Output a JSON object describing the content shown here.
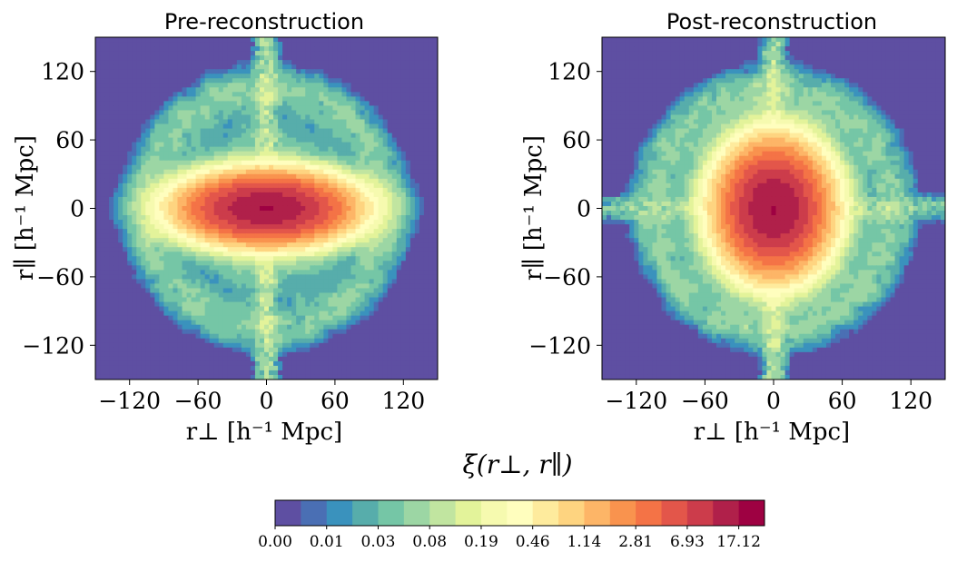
{
  "chart_data": [
    {
      "type": "heatmap",
      "panel": "pre",
      "title": "Pre-reconstruction",
      "xlabel": "r⊥ [h⁻¹ Mpc]",
      "ylabel": "r∥ [h⁻¹ Mpc]",
      "xlim": [
        -150,
        150
      ],
      "ylim": [
        -150,
        150
      ],
      "xticks": [
        -120,
        -60,
        0,
        60,
        120
      ],
      "yticks": [
        -120,
        -60,
        0,
        60,
        120
      ],
      "xtick_labels": [
        "−120",
        "−60",
        "0",
        "60",
        "120"
      ],
      "ytick_labels": [
        "−120",
        "−60",
        "0",
        "60",
        "120"
      ],
      "core": {
        "sigma_perp": 34,
        "sigma_par": 14,
        "peak": 17.12
      },
      "bao_ring_radius": 105,
      "los_filament": true,
      "transverse_filament": false
    },
    {
      "type": "heatmap",
      "panel": "post",
      "title": "Post-reconstruction",
      "xlabel": "r⊥ [h⁻¹ Mpc]",
      "ylabel": "r∥ [h⁻¹ Mpc]",
      "xlim": [
        -150,
        150
      ],
      "ylim": [
        -150,
        150
      ],
      "xticks": [
        -120,
        -60,
        0,
        60,
        120
      ],
      "yticks": [
        -120,
        -60,
        0,
        60,
        120
      ],
      "xtick_labels": [
        "−120",
        "−60",
        "0",
        "60",
        "120"
      ],
      "ytick_labels": [
        "−120",
        "−60",
        "0",
        "60",
        "120"
      ],
      "core": {
        "sigma_perp": 22,
        "sigma_par": 26,
        "peak": 17.12
      },
      "bao_ring_radius": 105,
      "los_filament": true,
      "transverse_filament": true
    }
  ],
  "colorbar": {
    "label": "ξ(r⊥, r∥)",
    "tick_labels": [
      "0.00",
      "0.01",
      "0.03",
      "0.08",
      "0.19",
      "0.46",
      "1.14",
      "2.81",
      "6.93",
      "17.12"
    ],
    "colors": [
      "#5e4fa2",
      "#4a6fb4",
      "#3a92bd",
      "#57adab",
      "#75c6a6",
      "#9cd6a4",
      "#c1e5a0",
      "#e3f39a",
      "#f6faaf",
      "#fffebe",
      "#feeb9d",
      "#fed480",
      "#fdb567",
      "#f9934e",
      "#f47346",
      "#e3564a",
      "#cc3c4b",
      "#b0204a",
      "#9e0142"
    ]
  }
}
